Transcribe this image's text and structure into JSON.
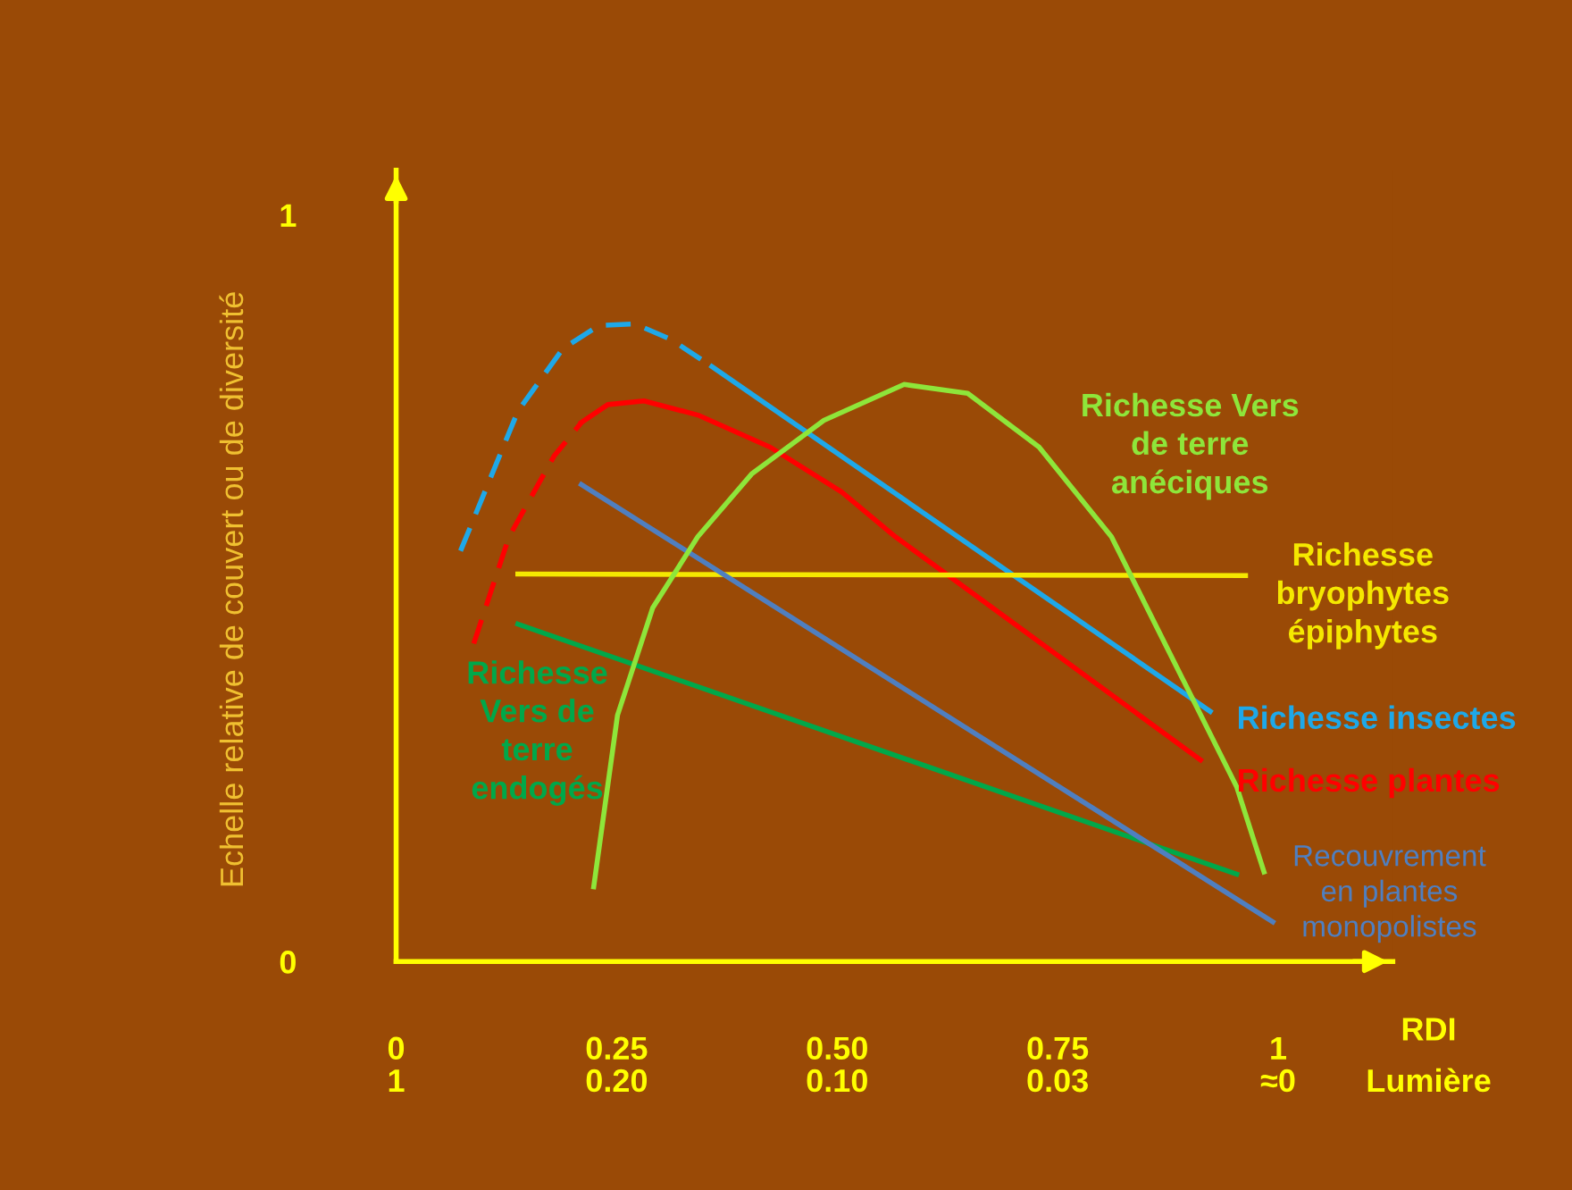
{
  "chart_data": {
    "type": "line",
    "ylabel": "Echelle relative de couvert ou de diversité",
    "xlabel": "RDI",
    "annotations": [
      "Lumière",
      "1",
      "0.20",
      "0.10",
      "0.03",
      "≈0"
    ],
    "xlim": [
      0,
      1.13
    ],
    "ylim": [
      0,
      1.06
    ],
    "xticks": [
      0,
      0.25,
      {
        "value": 0.5,
        "label": "0.50"
      },
      0.75,
      1
    ],
    "yticks": [
      0,
      1
    ],
    "grid": false,
    "legend": false,
    "series": [
      {
        "color": "#1ea8e8",
        "line_style": "dashed",
        "x": [
          0.073,
          0.138,
          0.189,
          0.23,
          0.271,
          0.312,
          0.358
        ],
        "values": [
          0.55,
          0.737,
          0.821,
          0.852,
          0.854,
          0.833,
          0.797
        ]
      },
      {
        "name": "Richesse insectes",
        "color": "#1ea8e8",
        "line_style": "solid",
        "x": [
          0.358,
          0.923
        ],
        "values": [
          0.797,
          0.335
        ]
      },
      {
        "color": "#ff0000",
        "line_style": "dashed",
        "x": [
          0.088,
          0.128,
          0.179,
          0.21
        ],
        "values": [
          0.426,
          0.569,
          0.677,
          0.722
        ]
      },
      {
        "name": "Richesse plantes",
        "color": "#ff0000",
        "line_style": "solid",
        "x": [
          0.21,
          0.24,
          0.281,
          0.342,
          0.424,
          0.505,
          0.566,
          0.912
        ],
        "values": [
          0.722,
          0.746,
          0.751,
          0.732,
          0.689,
          0.629,
          0.569,
          0.27
        ]
      },
      {
        "name": "Richesse\nbryophytes\népiphytes",
        "color": "#f5e800",
        "line_style": "solid",
        "x": [
          0.138,
          0.963
        ],
        "values": [
          0.519,
          0.517
        ]
      },
      {
        "name": "Richesse\nVers de\nterre\nendogés",
        "color": "#00a84a",
        "line_style": "solid",
        "x": [
          0.138,
          0.953
        ],
        "values": [
          0.452,
          0.117
        ]
      },
      {
        "name": "Recouvrement\nen plantes\nmonopolistes",
        "color": "#4f7fc0",
        "line_style": "solid",
        "x": [
          0.21,
          0.994
        ],
        "values": [
          0.639,
          0.053
        ]
      },
      {
        "name": "Richesse Vers\nde terre\nanéciques",
        "color": "#8ee63a",
        "line_style": "solid",
        "x": [
          0.224,
          0.251,
          0.291,
          0.342,
          0.403,
          0.485,
          0.576,
          0.648,
          0.729,
          0.811,
          0.892,
          0.953,
          0.984
        ],
        "values": [
          0.1,
          0.33,
          0.474,
          0.569,
          0.653,
          0.725,
          0.773,
          0.761,
          0.689,
          0.569,
          0.378,
          0.234,
          0.12
        ]
      }
    ]
  }
}
